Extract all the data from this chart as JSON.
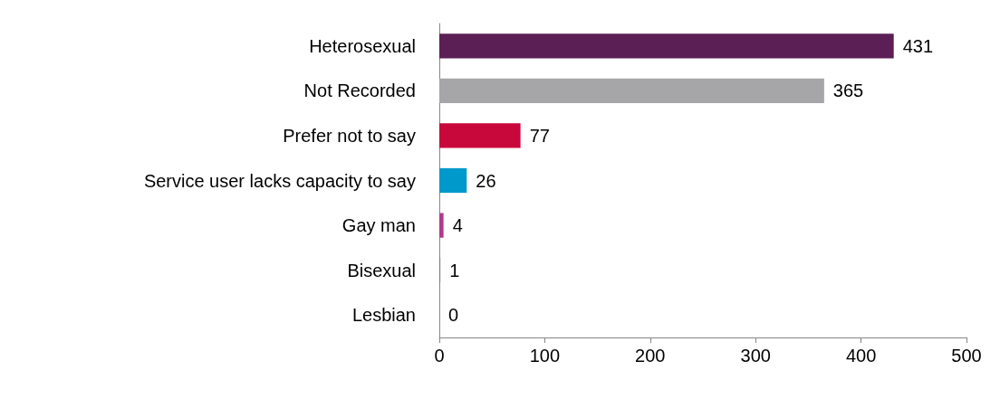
{
  "chart_data": {
    "type": "bar",
    "orientation": "horizontal",
    "categories": [
      "Heterosexual",
      "Not Recorded",
      "Prefer not to say",
      "Service user lacks capacity to say",
      "Gay man",
      "Bisexual",
      "Lesbian"
    ],
    "values": [
      431,
      365,
      77,
      26,
      4,
      1,
      0
    ],
    "colors": [
      "#5b1f55",
      "#a6a6a8",
      "#c8073b",
      "#0099cc",
      "#b03a8c",
      "#7f7f7f",
      "#7f7f7f"
    ],
    "xlim": [
      0,
      500
    ],
    "xticks": [
      0,
      100,
      200,
      300,
      400,
      500
    ],
    "data_labels": true,
    "grid": false
  }
}
